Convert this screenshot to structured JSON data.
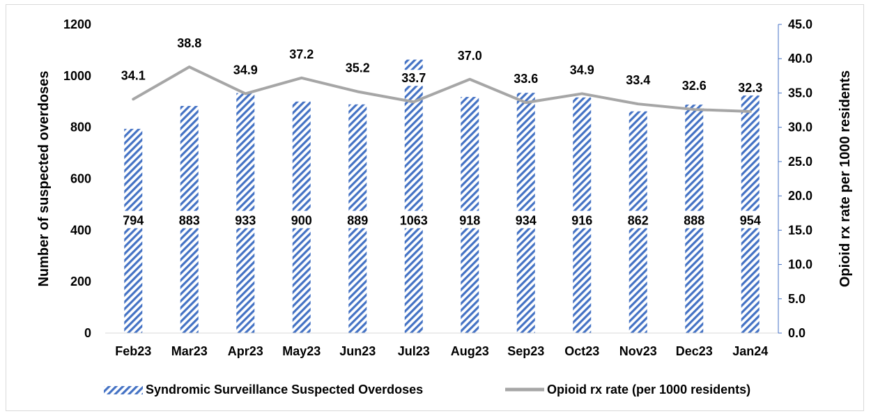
{
  "chart_data": {
    "type": "bar",
    "categories": [
      "Feb23",
      "Mar23",
      "Apr23",
      "May23",
      "Jun23",
      "Jul23",
      "Aug23",
      "Sep23",
      "Oct23",
      "Nov23",
      "Dec23",
      "Jan24"
    ],
    "series": [
      {
        "name": "Syndromic Surveillance Suspected Overdoses",
        "type": "bar",
        "axis": "left",
        "pattern": "diagonal-stripes",
        "color": "#4472c4",
        "values": [
          794,
          883,
          933,
          900,
          889,
          1063,
          918,
          934,
          916,
          862,
          888,
          954
        ]
      },
      {
        "name": "Opioid rx rate (per 1000 residents)",
        "type": "line",
        "axis": "right",
        "color": "#a6a6a6",
        "values": [
          34.1,
          38.8,
          34.9,
          37.2,
          35.2,
          33.7,
          37.0,
          33.6,
          34.9,
          33.4,
          32.6,
          32.3
        ],
        "labels": [
          "34.1",
          "38.8",
          "34.9",
          "37.2",
          "35.2",
          "33.7",
          "37.0",
          "33.6",
          "34.9",
          "33.4",
          "32.6",
          "32.3"
        ]
      }
    ],
    "ylabel": "Number of suspected overdoses",
    "y2label": "Opioid rx rate per 1000 residents",
    "ylim": [
      0,
      1200
    ],
    "y2lim": [
      0,
      45
    ],
    "yticks": [
      "0",
      "200",
      "400",
      "600",
      "800",
      "1000",
      "1200"
    ],
    "y2ticks": [
      "0.0",
      "5.0",
      "10.0",
      "15.0",
      "20.0",
      "25.0",
      "30.0",
      "35.0",
      "40.0",
      "45.0"
    ],
    "grid": false,
    "legend_position": "bottom"
  }
}
